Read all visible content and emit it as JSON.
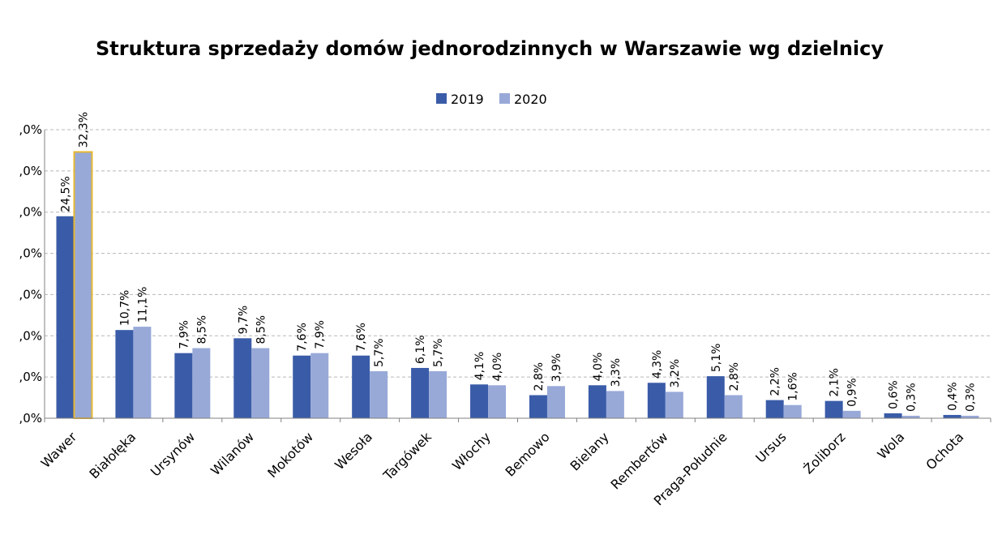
{
  "chart_data": {
    "type": "bar",
    "title": "Struktura sprzedaży domów jednorodzinnych w Warszawie wg dzielnicy",
    "categories": [
      "Wawer",
      "Białołęka",
      "Ursynów",
      "Wilanów",
      "Mokotów",
      "Wesoła",
      "Targówek",
      "Włochy",
      "Bemowo",
      "Bielany",
      "Rembertów",
      "Praga-Południe",
      "Ursus",
      "Żoliborz",
      "Wola",
      "Ochota"
    ],
    "series": [
      {
        "name": "2019",
        "color": "#3a5ca8",
        "values": [
          24.5,
          10.7,
          7.9,
          9.7,
          7.6,
          7.6,
          6.1,
          4.1,
          2.8,
          4.0,
          4.3,
          5.1,
          2.2,
          2.1,
          0.6,
          0.4
        ],
        "labels": [
          "24,5%",
          "10,7%",
          "7,9%",
          "9,7%",
          "7,6%",
          "7,6%",
          "6,1%",
          "4,1%",
          "2,8%",
          "4,0%",
          "4,3%",
          "5,1%",
          "2,2%",
          "2,1%",
          "0,6%",
          "0,4%"
        ]
      },
      {
        "name": "2020",
        "color": "#98a9d8",
        "values": [
          32.3,
          11.1,
          8.5,
          8.5,
          7.9,
          5.7,
          5.7,
          4.0,
          3.9,
          3.3,
          3.2,
          2.8,
          1.6,
          0.9,
          0.3,
          0.3
        ],
        "labels": [
          "32,3%",
          "11,1%",
          "8,5%",
          "8,5%",
          "7,9%",
          "5,7%",
          "5,7%",
          "4,0%",
          "3,9%",
          "3,3%",
          "3,2%",
          "2,8%",
          "1,6%",
          "0,9%",
          "0,3%",
          "0,3%"
        ]
      }
    ],
    "ylim": [
      0,
      35
    ],
    "yticks": [
      0,
      5,
      10,
      15,
      20,
      25,
      30,
      35
    ],
    "ytick_labels": [
      ",0%",
      ",0%",
      ",0%",
      ",0%",
      ",0%",
      ",0%",
      ",0%",
      ",0%"
    ],
    "grid": true,
    "legend_position": "top-center",
    "highlight": {
      "category": "Wawer",
      "series": "2020",
      "outline_color": "#e8b830"
    }
  }
}
